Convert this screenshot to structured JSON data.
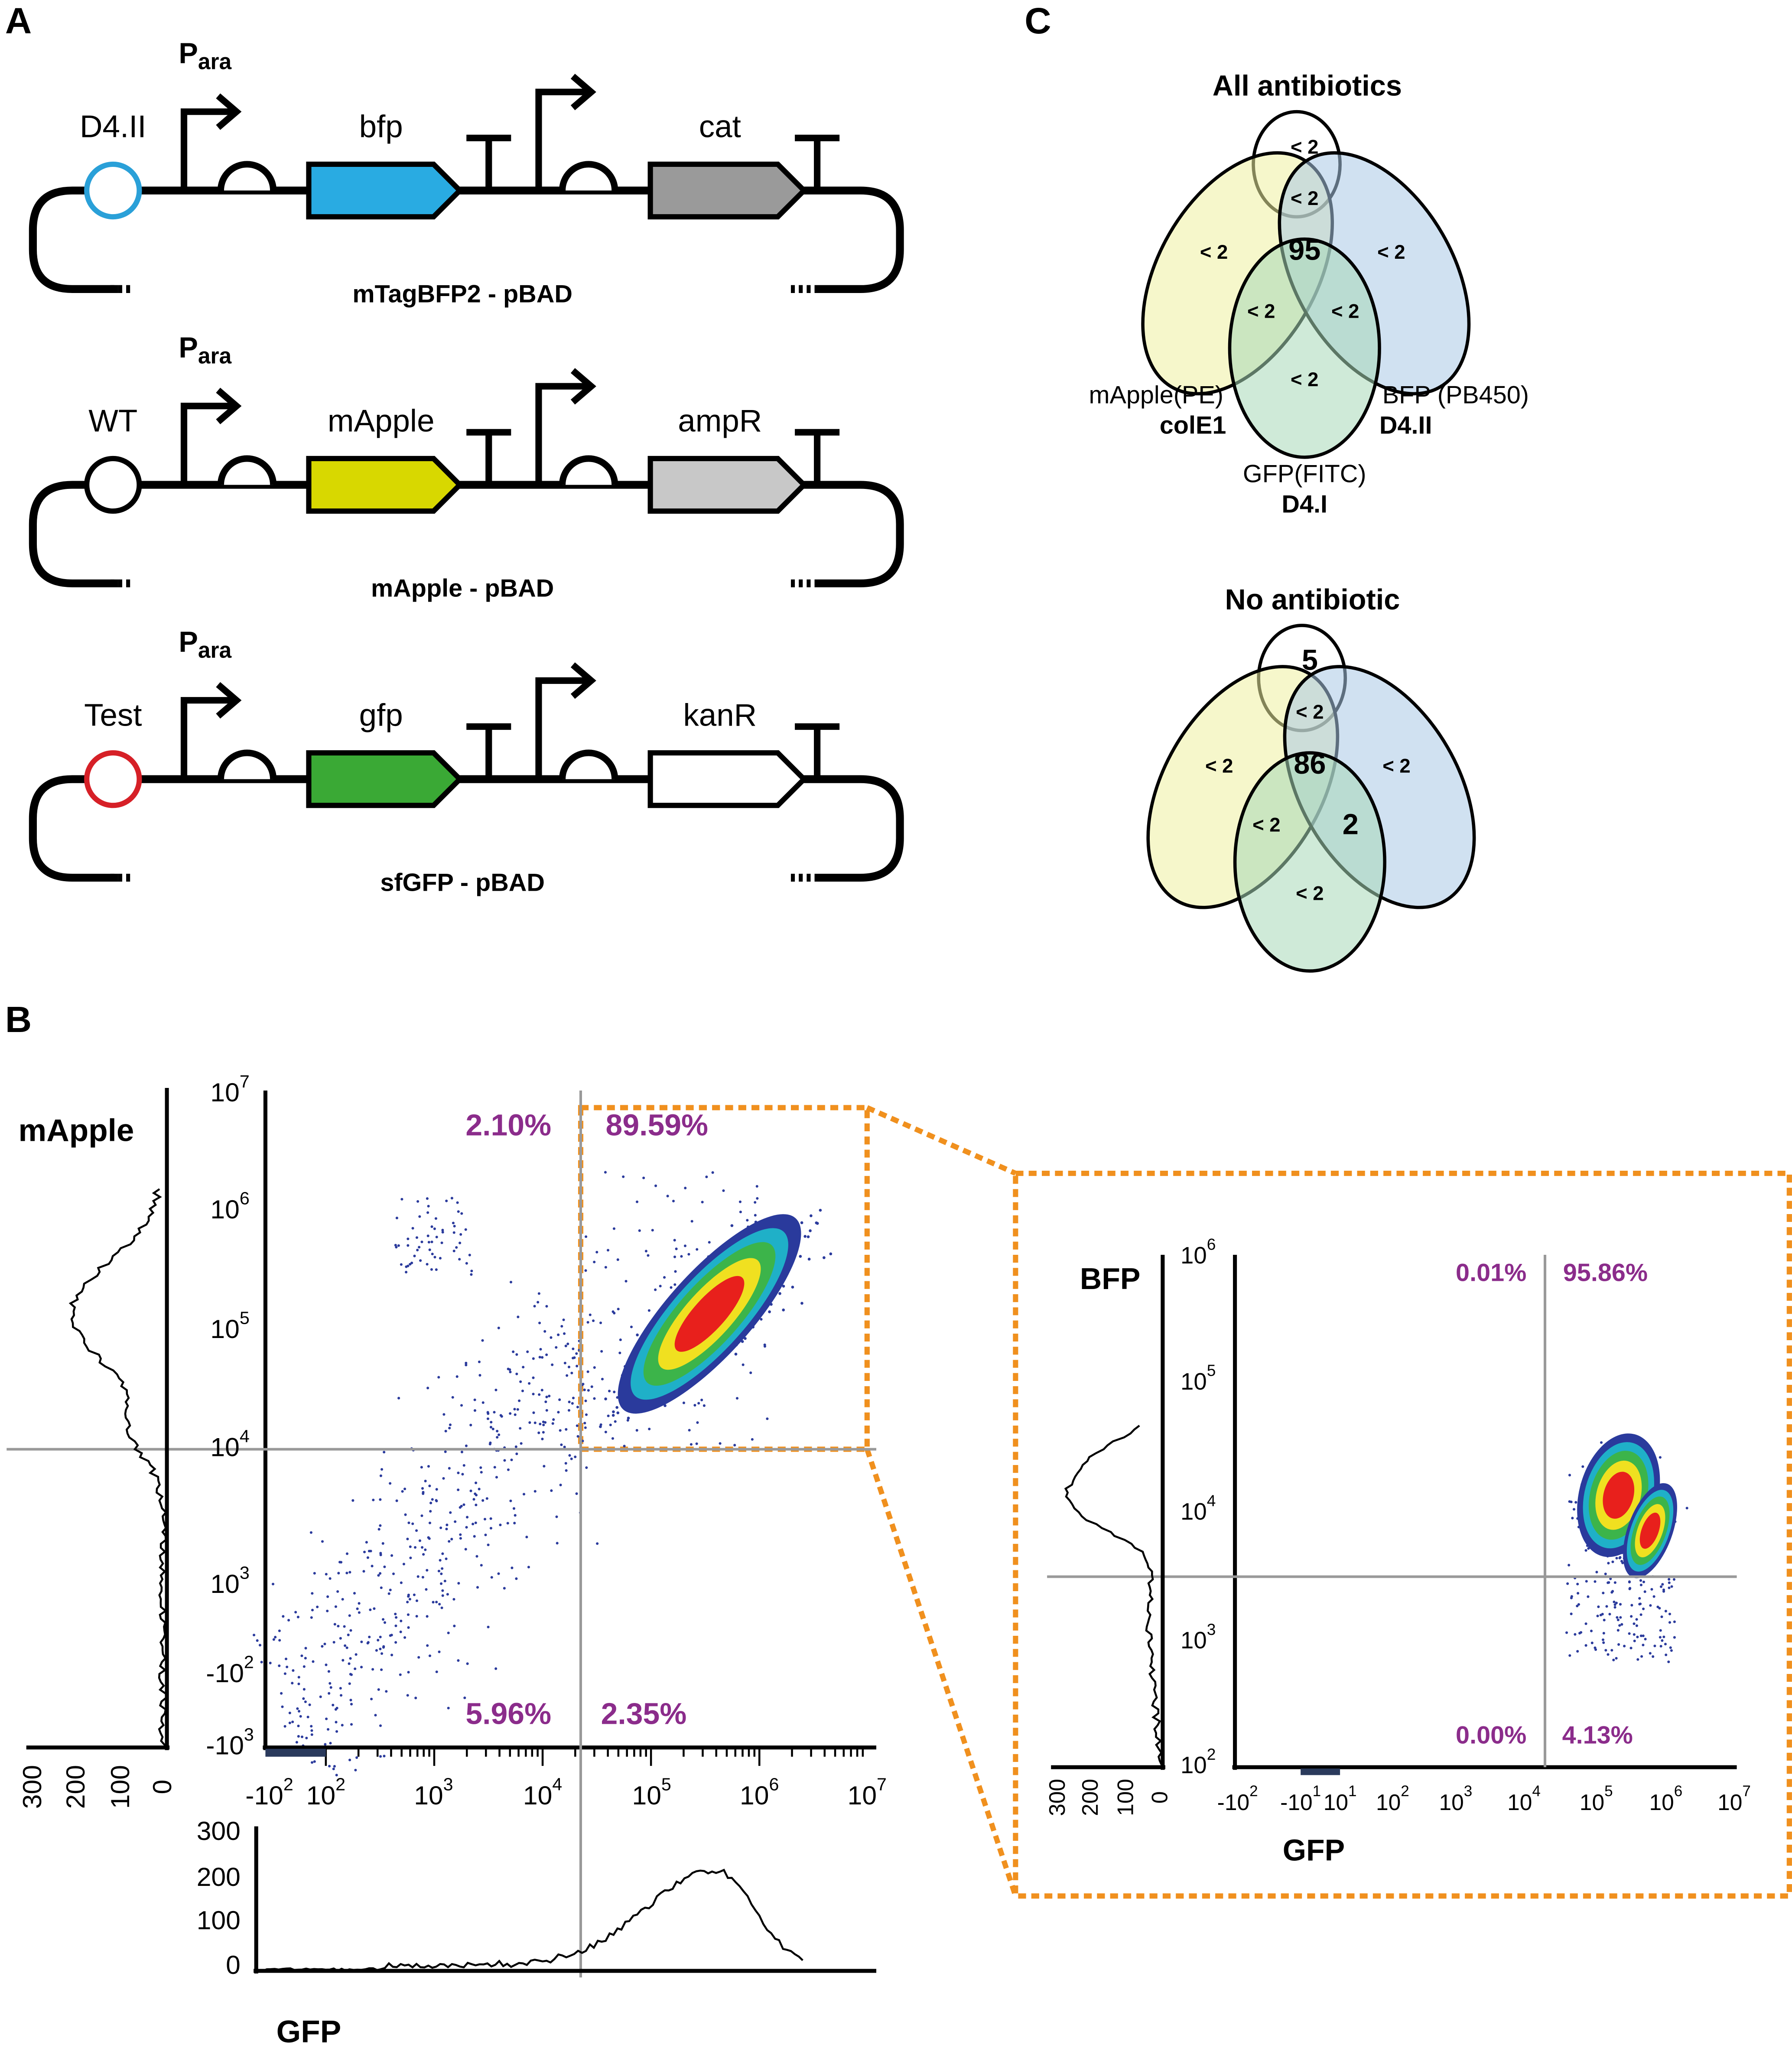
{
  "panel_a": {
    "label": "A",
    "constructs": [
      {
        "origin": "D4.II",
        "promoter": "P",
        "promoter_sub": "ara",
        "gene": "bfp",
        "marker": "cat",
        "name": "mTagBFP2 - pBAD"
      },
      {
        "origin": "WT",
        "promoter": "P",
        "promoter_sub": "ara",
        "gene": "mApple",
        "marker": "ampR",
        "name": "mApple - pBAD"
      },
      {
        "origin": "Test",
        "promoter": "P",
        "promoter_sub": "ara",
        "gene": "gfp",
        "marker": "kanR",
        "name": "sfGFP - pBAD"
      }
    ]
  },
  "panel_b": {
    "label": "B",
    "main": {
      "y_label": "mApple",
      "x_label": "GFP",
      "quadrants": {
        "upper_left": "2.10%",
        "upper_right": "89.59%",
        "lower_left": "5.96%",
        "lower_right": "2.35%"
      },
      "y_ticks": [
        {
          "base": "10",
          "exp": "7"
        },
        {
          "base": "10",
          "exp": "6"
        },
        {
          "base": "10",
          "exp": "5"
        },
        {
          "base": "10",
          "exp": "4"
        },
        {
          "base": "10",
          "exp": "3"
        },
        {
          "base": "-10",
          "exp": "2"
        },
        {
          "base": "-10",
          "exp": "3"
        }
      ],
      "x_ticks": [
        {
          "base": "-10",
          "exp": "2"
        },
        {
          "base": "10",
          "exp": "2"
        },
        {
          "base": "10",
          "exp": "3"
        },
        {
          "base": "10",
          "exp": "4"
        },
        {
          "base": "10",
          "exp": "5"
        },
        {
          "base": "10",
          "exp": "6"
        },
        {
          "base": "10",
          "exp": "7"
        }
      ],
      "y_histogram_ticks": [
        "300",
        "200",
        "100",
        "0"
      ],
      "x_histogram_ticks": [
        "300",
        "200",
        "100",
        "0"
      ]
    },
    "inset": {
      "y_label": "BFP",
      "x_label": "GFP",
      "quadrants": {
        "upper_left": "0.01%",
        "upper_right": "95.86%",
        "lower_left": "0.00%",
        "lower_right": "4.13%"
      },
      "y_ticks": [
        {
          "base": "10",
          "exp": "6"
        },
        {
          "base": "10",
          "exp": "5"
        },
        {
          "base": "10",
          "exp": "4"
        },
        {
          "base": "10",
          "exp": "3"
        },
        {
          "base": "10",
          "exp": "2"
        }
      ],
      "x_ticks": [
        {
          "base": "-10",
          "exp": "2"
        },
        {
          "base": "-10",
          "exp": "1"
        },
        {
          "base": "10",
          "exp": "1"
        },
        {
          "base": "10",
          "exp": "2"
        },
        {
          "base": "10",
          "exp": "3"
        },
        {
          "base": "10",
          "exp": "4"
        },
        {
          "base": "10",
          "exp": "5"
        },
        {
          "base": "10",
          "exp": "6"
        },
        {
          "base": "10",
          "exp": "7"
        }
      ],
      "y_histogram_ticks": [
        "300",
        "200",
        "100",
        "0"
      ]
    }
  },
  "panel_c": {
    "label": "C",
    "venns": [
      {
        "title": "All antibiotics",
        "regions": {
          "top": "< 2",
          "upper_middle": "< 2",
          "center": "95",
          "left": "< 2",
          "right": "< 2",
          "lower_left": "< 2",
          "lower_right": "< 2",
          "bottom": "< 2"
        },
        "set_labels": [
          {
            "name": "mApple(PE)",
            "origin": "colE1"
          },
          {
            "name": "BFP (PB450)",
            "origin": "D4.II"
          },
          {
            "name": "GFP(FITC)",
            "origin": "D4.I"
          }
        ]
      },
      {
        "title": "No antibiotic",
        "regions": {
          "top": "5",
          "upper_middle": "< 2",
          "center": "86",
          "left": "< 2",
          "right": "< 2",
          "lower_left": "< 2",
          "lower_right": "2",
          "bottom": "< 2"
        }
      }
    ]
  }
}
